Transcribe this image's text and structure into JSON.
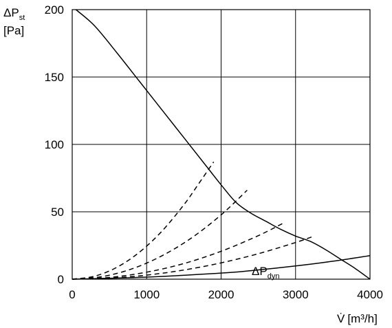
{
  "chart_data": {
    "type": "line",
    "title": "",
    "xlabel": {
      "prefix": "V̇",
      "unit": "[m³/h]"
    },
    "ylabel": {
      "main": "ΔP",
      "sub": "st",
      "unit": "[Pa]"
    },
    "xlim": [
      0,
      4000
    ],
    "ylim": [
      0,
      200
    ],
    "xticks": [
      0,
      1000,
      2000,
      3000,
      4000
    ],
    "yticks": [
      0,
      50,
      100,
      150,
      200
    ],
    "grid": true,
    "annotation": {
      "main": "ΔP",
      "sub": "dyn"
    },
    "series": [
      {
        "style": "solid",
        "x": [
          50,
          300,
          600,
          900,
          1200,
          1500,
          1800,
          2000,
          2200,
          2400,
          2600,
          2800,
          3000,
          3200,
          3400,
          3600,
          3800,
          4000
        ],
        "y": [
          200,
          188,
          168,
          147,
          126,
          105,
          84,
          70,
          57,
          49,
          43,
          37,
          32,
          28,
          22,
          15,
          8,
          0
        ]
      },
      {
        "style": "solid",
        "x": [
          0,
          1000,
          2000,
          2400,
          3000,
          3500,
          4000
        ],
        "y": [
          0,
          1.5,
          4.5,
          6.3,
          9.8,
          13.3,
          17.5
        ]
      },
      {
        "style": "dashed",
        "x": [
          0,
          300,
          600,
          900,
          1200,
          1500,
          1700,
          1900
        ],
        "y": [
          0,
          2.2,
          8.8,
          19.9,
          35.3,
          55.2,
          70.9,
          87
        ]
      },
      {
        "style": "dashed",
        "x": [
          0,
          400,
          800,
          1200,
          1600,
          2000,
          2350
        ],
        "y": [
          0,
          1.9,
          7.6,
          17.2,
          30.5,
          47.7,
          66
        ]
      },
      {
        "style": "dashed",
        "x": [
          0,
          500,
          1000,
          1500,
          2000,
          2500,
          2850
        ],
        "y": [
          0,
          1.3,
          5.2,
          11.6,
          20.7,
          32.3,
          42
        ]
      },
      {
        "style": "dashed",
        "x": [
          0,
          500,
          1000,
          1500,
          2000,
          2500,
          3000,
          3250
        ],
        "y": [
          0,
          0.8,
          3.0,
          6.8,
          12.1,
          18.9,
          27.2,
          32
        ]
      }
    ]
  }
}
